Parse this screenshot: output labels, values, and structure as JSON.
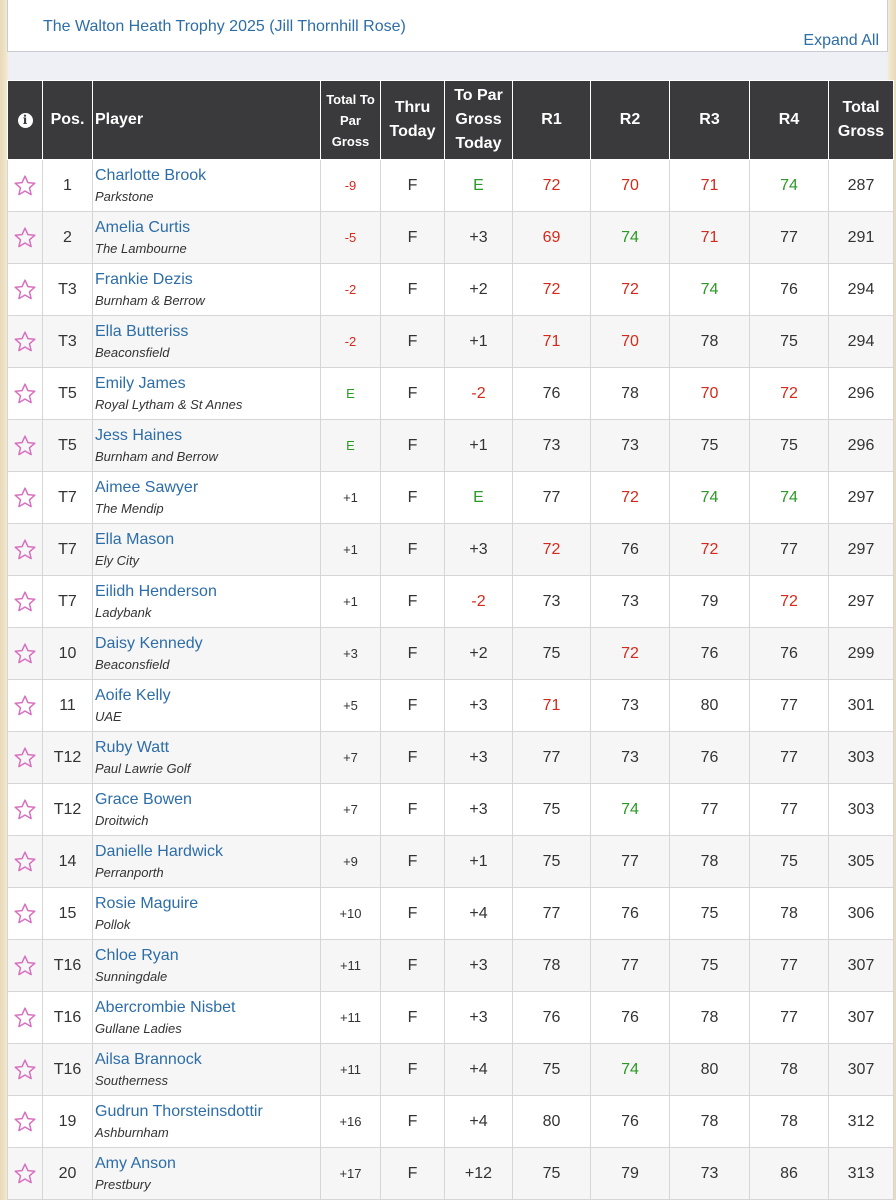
{
  "title": "The Walton Heath Trophy 2025 (Jill Thornhill Rose)",
  "expand_all": "Expand All",
  "colors": {
    "red": "#d42a1c",
    "green": "#2a9a24",
    "link": "#2d6da8",
    "star": "#d770c0",
    "header": "#3a3a3c"
  },
  "headers": {
    "info_icon": "info-icon",
    "pos": "Pos.",
    "player": "Player",
    "total_to_par_gross": "Total To Par Gross",
    "thru_today": "Thru Today",
    "to_par_gross_today": "To Par Gross Today",
    "r1": "R1",
    "r2": "R2",
    "r3": "R3",
    "r4": "R4",
    "total_gross": "Total Gross"
  },
  "rows": [
    {
      "pos": "1",
      "name": "Charlotte Brook",
      "club": "Parkstone",
      "tpg": "-9",
      "thru": "F",
      "today": "E",
      "r1": "72",
      "r2": "70",
      "r3": "71",
      "r4": "74",
      "total": "287"
    },
    {
      "pos": "2",
      "name": "Amelia Curtis",
      "club": "The Lambourne",
      "tpg": "-5",
      "thru": "F",
      "today": "+3",
      "r1": "69",
      "r2": "74",
      "r3": "71",
      "r4": "77",
      "total": "291"
    },
    {
      "pos": "T3",
      "name": "Frankie Dezis",
      "club": "Burnham & Berrow",
      "tpg": "-2",
      "thru": "F",
      "today": "+2",
      "r1": "72",
      "r2": "72",
      "r3": "74",
      "r4": "76",
      "total": "294"
    },
    {
      "pos": "T3",
      "name": "Ella Butteriss",
      "club": "Beaconsfield",
      "tpg": "-2",
      "thru": "F",
      "today": "+1",
      "r1": "71",
      "r2": "70",
      "r3": "78",
      "r4": "75",
      "total": "294"
    },
    {
      "pos": "T5",
      "name": "Emily James",
      "club": "Royal Lytham & St Annes",
      "tpg": "E",
      "thru": "F",
      "today": "-2",
      "r1": "76",
      "r2": "78",
      "r3": "70",
      "r4": "72",
      "total": "296"
    },
    {
      "pos": "T5",
      "name": "Jess Haines",
      "club": "Burnham and Berrow",
      "tpg": "E",
      "thru": "F",
      "today": "+1",
      "r1": "73",
      "r2": "73",
      "r3": "75",
      "r4": "75",
      "total": "296"
    },
    {
      "pos": "T7",
      "name": "Aimee Sawyer",
      "club": "The Mendip",
      "tpg": "+1",
      "thru": "F",
      "today": "E",
      "r1": "77",
      "r2": "72",
      "r3": "74",
      "r4": "74",
      "total": "297"
    },
    {
      "pos": "T7",
      "name": "Ella Mason",
      "club": "Ely City",
      "tpg": "+1",
      "thru": "F",
      "today": "+3",
      "r1": "72",
      "r2": "76",
      "r3": "72",
      "r4": "77",
      "total": "297"
    },
    {
      "pos": "T7",
      "name": "Eilidh Henderson",
      "club": "Ladybank",
      "tpg": "+1",
      "thru": "F",
      "today": "-2",
      "r1": "73",
      "r2": "73",
      "r3": "79",
      "r4": "72",
      "total": "297"
    },
    {
      "pos": "10",
      "name": "Daisy Kennedy",
      "club": "Beaconsfield",
      "tpg": "+3",
      "thru": "F",
      "today": "+2",
      "r1": "75",
      "r2": "72",
      "r3": "76",
      "r4": "76",
      "total": "299"
    },
    {
      "pos": "11",
      "name": "Aoife Kelly",
      "club": "UAE",
      "tpg": "+5",
      "thru": "F",
      "today": "+3",
      "r1": "71",
      "r2": "73",
      "r3": "80",
      "r4": "77",
      "total": "301"
    },
    {
      "pos": "T12",
      "name": "Ruby Watt",
      "club": "Paul Lawrie Golf",
      "tpg": "+7",
      "thru": "F",
      "today": "+3",
      "r1": "77",
      "r2": "73",
      "r3": "76",
      "r4": "77",
      "total": "303"
    },
    {
      "pos": "T12",
      "name": "Grace Bowen",
      "club": "Droitwich",
      "tpg": "+7",
      "thru": "F",
      "today": "+3",
      "r1": "75",
      "r2": "74",
      "r3": "77",
      "r4": "77",
      "total": "303"
    },
    {
      "pos": "14",
      "name": "Danielle Hardwick",
      "club": "Perranporth",
      "tpg": "+9",
      "thru": "F",
      "today": "+1",
      "r1": "75",
      "r2": "77",
      "r3": "78",
      "r4": "75",
      "total": "305"
    },
    {
      "pos": "15",
      "name": "Rosie Maguire",
      "club": "Pollok",
      "tpg": "+10",
      "thru": "F",
      "today": "+4",
      "r1": "77",
      "r2": "76",
      "r3": "75",
      "r4": "78",
      "total": "306"
    },
    {
      "pos": "T16",
      "name": "Chloe Ryan",
      "club": "Sunningdale",
      "tpg": "+11",
      "thru": "F",
      "today": "+3",
      "r1": "78",
      "r2": "77",
      "r3": "75",
      "r4": "77",
      "total": "307"
    },
    {
      "pos": "T16",
      "name": "Abercrombie Nisbet",
      "club": "Gullane Ladies",
      "tpg": "+11",
      "thru": "F",
      "today": "+3",
      "r1": "76",
      "r2": "76",
      "r3": "78",
      "r4": "77",
      "total": "307"
    },
    {
      "pos": "T16",
      "name": "Ailsa Brannock",
      "club": "Southerness",
      "tpg": "+11",
      "thru": "F",
      "today": "+4",
      "r1": "75",
      "r2": "74",
      "r3": "80",
      "r4": "78",
      "total": "307"
    },
    {
      "pos": "19",
      "name": "Gudrun Thorsteinsdottir",
      "club": "Ashburnham",
      "tpg": "+16",
      "thru": "F",
      "today": "+4",
      "r1": "80",
      "r2": "76",
      "r3": "78",
      "r4": "78",
      "total": "312"
    },
    {
      "pos": "20",
      "name": "Amy Anson",
      "club": "Prestbury",
      "tpg": "+17",
      "thru": "F",
      "today": "+12",
      "r1": "75",
      "r2": "79",
      "r3": "73",
      "r4": "86",
      "total": "313"
    }
  ]
}
